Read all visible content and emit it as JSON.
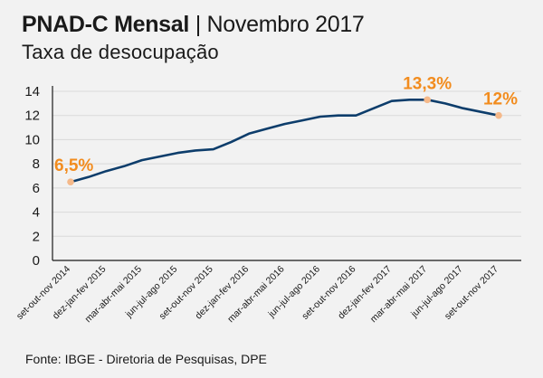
{
  "header": {
    "title_bold": "PNAD-C Mensal",
    "title_separator": "|",
    "title_rest": "Novembro 2017",
    "subtitle": "Taxa de desocupação"
  },
  "footer": {
    "source": "Fonte: IBGE - Diretoria de Pesquisas, DPE"
  },
  "colors": {
    "line": "#0d3d6b",
    "accent": "#f28c1e",
    "marker": "#f5b98a",
    "grid": "#d9d9d9",
    "axis": "#1a1a1a"
  },
  "chart_data": {
    "type": "line",
    "title": "Taxa de desocupação",
    "ylim": [
      0,
      14
    ],
    "yticks": [
      0,
      2,
      4,
      6,
      8,
      10,
      12,
      14
    ],
    "grid": true,
    "categories": [
      "set-out-nov 2014",
      "",
      "dez-jan-fev 2015",
      "",
      "mar-abr-mai 2015",
      "",
      "jun-jul-ago 2015",
      "",
      "set-out-nov 2015",
      "",
      "dez-jan-fev 2016",
      "",
      "mar-abr-mai 2016",
      "",
      "jun-jul-ago 2016",
      "",
      "set-out-nov 2016",
      "",
      "dez-jan-fev 2017",
      "",
      "mar-abr-mai 2017",
      "",
      "jun-jul-ago 2017",
      "",
      "set-out-nov 2017"
    ],
    "tick_labels": [
      "set-out-nov 2014",
      "dez-jan-fev 2015",
      "mar-abr-mai 2015",
      "jun-jul-ago 2015",
      "set-out-nov 2015",
      "dez-jan-fev 2016",
      "mar-abr-mai 2016",
      "jun-jul-ago 2016",
      "set-out-nov 2016",
      "dez-jan-fev 2017",
      "mar-abr-mai 2017",
      "jun-jul-ago 2017",
      "set-out-nov 2017"
    ],
    "series": [
      {
        "values": [
          6.5,
          6.9,
          7.4,
          7.8,
          8.3,
          8.6,
          8.9,
          9.1,
          9.2,
          9.8,
          10.5,
          10.9,
          11.3,
          11.6,
          11.9,
          12.0,
          12.0,
          12.6,
          13.2,
          13.3,
          13.3,
          13.0,
          12.6,
          12.3,
          12.0
        ]
      }
    ],
    "annotations": [
      {
        "index": 0,
        "label": "6,5%"
      },
      {
        "index": 20,
        "label": "13,3%"
      },
      {
        "index": 24,
        "label": "12%"
      }
    ]
  }
}
